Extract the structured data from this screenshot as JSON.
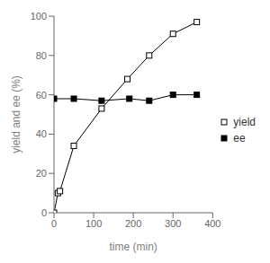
{
  "chart_data": {
    "type": "line",
    "xlabel": "time (min)",
    "ylabel": "yield and ee (%)",
    "xlim": [
      0,
      400
    ],
    "ylim": [
      0,
      100
    ],
    "xticks": [
      0,
      100,
      200,
      300,
      400
    ],
    "yticks": [
      0,
      20,
      40,
      60,
      80,
      100
    ],
    "legend": "right",
    "series": [
      {
        "name": "yield",
        "color": "black",
        "marker": "open_square",
        "x": [
          0,
          10,
          15,
          50,
          120,
          185,
          240,
          300,
          360
        ],
        "values": [
          0,
          10,
          11,
          34,
          53,
          68,
          80,
          91,
          97
        ]
      },
      {
        "name": "ee",
        "color": "black",
        "marker": "square",
        "x": [
          0,
          50,
          120,
          190,
          240,
          300,
          360
        ],
        "values": [
          58,
          58,
          57,
          58,
          57,
          60,
          60
        ]
      }
    ]
  }
}
